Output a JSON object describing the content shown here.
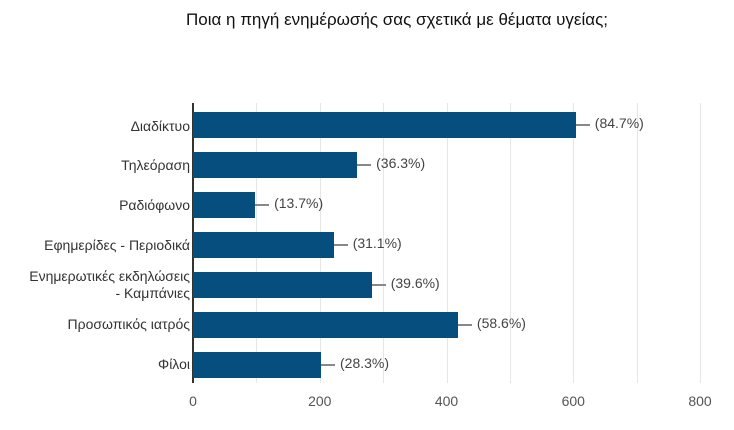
{
  "chart_data": {
    "type": "bar",
    "orientation": "horizontal",
    "title": "Ποια η πηγή ενημέρωσής σας σχετικά με θέματα υγείας;",
    "xlabel": "",
    "ylabel": "",
    "xlim": [
      0,
      800
    ],
    "x_ticks": [
      "0",
      "200",
      "400",
      "600",
      "800"
    ],
    "grid": true,
    "bar_color": "#054e7e",
    "categories": [
      "Διαδίκτυο",
      "Τηλεόραση",
      "Ραδιόφωνο",
      "Εφημερίδες - Περιοδικά",
      "Ενημερωτικές εκδηλώσεις - Καμπάνιες",
      "Προσωπικός ιατρός",
      "Φίλοι"
    ],
    "values": [
      604,
      259,
      98,
      222,
      282,
      418,
      202
    ],
    "data_labels": [
      "(84.7%)",
      "(36.3%)",
      "(13.7%)",
      "(31.1%)",
      "(39.6%)",
      "(58.6%)",
      "(28.3%)"
    ]
  },
  "labels": {
    "cat0": "Διαδίκτυο",
    "cat1": "Τηλεόραση",
    "cat2": "Ραδιόφωνο",
    "cat3": "Εφημερίδες - Περιοδικά",
    "cat4a": "Ενημερωτικές εκδηλώσεις",
    "cat4b": "- Καμπάνιες",
    "cat5": "Προσωπικός ιατρός",
    "cat6": "Φίλοι"
  }
}
